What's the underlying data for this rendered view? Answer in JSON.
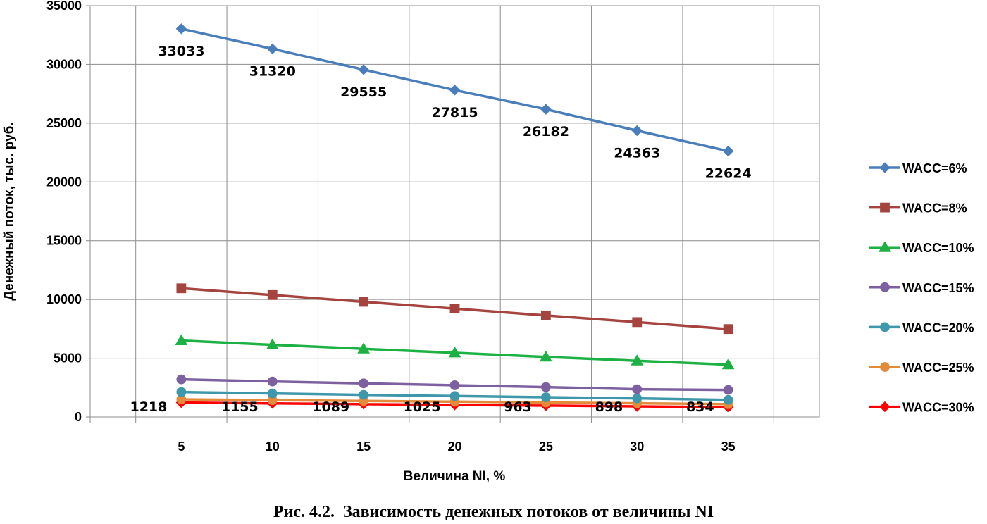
{
  "caption": "Рис. 4.2.  Зависимость денежных потоков от величины NI",
  "chart_data": {
    "type": "line",
    "title": "",
    "xlabel": "Величина NI, %",
    "ylabel": "Денежный поток, тыс. руб.",
    "x": [
      5,
      10,
      15,
      20,
      25,
      30,
      35
    ],
    "x_tick_labels": [
      "5",
      "10",
      "15",
      "20",
      "25",
      "30",
      "35"
    ],
    "ylim": [
      0,
      35000
    ],
    "y_ticks": [
      0,
      5000,
      10000,
      15000,
      20000,
      25000,
      30000,
      35000
    ],
    "y_tick_labels": [
      "0",
      "5000",
      "10000",
      "15000",
      "20000",
      "25000",
      "30000",
      "35000"
    ],
    "grid": true,
    "legend_position": "right",
    "series": [
      {
        "name": "WACC=6%",
        "color": "#4A7EBB",
        "marker": "diamond",
        "values": [
          33033,
          31320,
          29555,
          27815,
          26182,
          24363,
          22624
        ],
        "data_labels": [
          "33033",
          "31320",
          "29555",
          "27815",
          "26182",
          "24363",
          "22624"
        ]
      },
      {
        "name": "WACC=8%",
        "color": "#A5443E",
        "marker": "square",
        "values": [
          10950,
          10380,
          9800,
          9220,
          8640,
          8070,
          7480
        ]
      },
      {
        "name": "WACC=10%",
        "color": "#1DB144",
        "marker": "triangle",
        "values": [
          6500,
          6140,
          5800,
          5460,
          5110,
          4780,
          4450
        ]
      },
      {
        "name": "WACC=15%",
        "color": "#7D60A0",
        "marker": "circle",
        "values": [
          3200,
          3020,
          2860,
          2700,
          2540,
          2360,
          2300
        ]
      },
      {
        "name": "WACC=20%",
        "color": "#3E97AB",
        "marker": "circle",
        "values": [
          2120,
          2000,
          1880,
          1780,
          1680,
          1580,
          1450
        ]
      },
      {
        "name": "WACC=25%",
        "color": "#E38B3A",
        "marker": "circle",
        "values": [
          1500,
          1430,
          1360,
          1300,
          1230,
          1160,
          1090
        ]
      },
      {
        "name": "WACC=30%",
        "color": "#FF0000",
        "marker": "diamond",
        "values": [
          1218,
          1155,
          1089,
          1025,
          963,
          898,
          834
        ],
        "data_labels": [
          "1218",
          "1155",
          "1089",
          "1025",
          "963",
          "898",
          "834"
        ]
      }
    ]
  }
}
